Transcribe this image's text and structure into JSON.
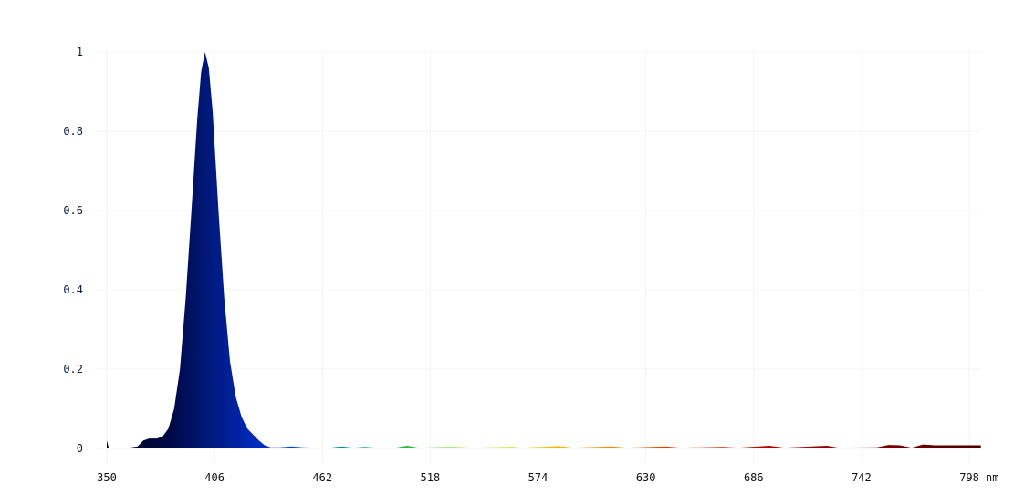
{
  "chart_data": {
    "type": "area",
    "title": "",
    "xlabel": "",
    "x_unit": "nm",
    "ylabel": "",
    "xlim": [
      350,
      804
    ],
    "ylim": [
      0,
      1
    ],
    "x_ticks": [
      350,
      406,
      462,
      518,
      574,
      630,
      686,
      742,
      798
    ],
    "y_ticks": [
      "0",
      "0.2",
      "0.4",
      "0.6",
      "0.8",
      "1"
    ],
    "grid": "faint vertical lines at x ticks",
    "fill": "colored by wavelength",
    "color_stops": [
      {
        "nm": 350,
        "color": "#00001a"
      },
      {
        "nm": 385,
        "color": "#000a4a"
      },
      {
        "nm": 405,
        "color": "#001a80"
      },
      {
        "nm": 440,
        "color": "#0033dd"
      },
      {
        "nm": 480,
        "color": "#009999"
      },
      {
        "nm": 510,
        "color": "#33bb33"
      },
      {
        "nm": 540,
        "color": "#aaee22"
      },
      {
        "nm": 580,
        "color": "#eebb00"
      },
      {
        "nm": 610,
        "color": "#ff8800"
      },
      {
        "nm": 645,
        "color": "#dd3300"
      },
      {
        "nm": 700,
        "color": "#aa0000"
      },
      {
        "nm": 804,
        "color": "#4a0000"
      }
    ],
    "points": [
      [
        350,
        0.02
      ],
      [
        351,
        0.002
      ],
      [
        360,
        0.001
      ],
      [
        366,
        0.005
      ],
      [
        369,
        0.02
      ],
      [
        372,
        0.025
      ],
      [
        376,
        0.025
      ],
      [
        379,
        0.03
      ],
      [
        382,
        0.05
      ],
      [
        385,
        0.1
      ],
      [
        388,
        0.2
      ],
      [
        391,
        0.38
      ],
      [
        394,
        0.6
      ],
      [
        397,
        0.83
      ],
      [
        399,
        0.95
      ],
      [
        401,
        1.0
      ],
      [
        403,
        0.96
      ],
      [
        405,
        0.85
      ],
      [
        408,
        0.6
      ],
      [
        411,
        0.38
      ],
      [
        414,
        0.22
      ],
      [
        417,
        0.13
      ],
      [
        420,
        0.08
      ],
      [
        423,
        0.05
      ],
      [
        426,
        0.035
      ],
      [
        429,
        0.02
      ],
      [
        432,
        0.008
      ],
      [
        435,
        0.003
      ],
      [
        440,
        0.003
      ],
      [
        446,
        0.005
      ],
      [
        452,
        0.003
      ],
      [
        458,
        0.002
      ],
      [
        466,
        0.002
      ],
      [
        472,
        0.005
      ],
      [
        478,
        0.002
      ],
      [
        484,
        0.004
      ],
      [
        490,
        0.002
      ],
      [
        500,
        0.002
      ],
      [
        506,
        0.007
      ],
      [
        512,
        0.002
      ],
      [
        530,
        0.004
      ],
      [
        540,
        0.002
      ],
      [
        560,
        0.004
      ],
      [
        566,
        0.002
      ],
      [
        585,
        0.006
      ],
      [
        592,
        0.002
      ],
      [
        612,
        0.005
      ],
      [
        620,
        0.002
      ],
      [
        640,
        0.005
      ],
      [
        648,
        0.002
      ],
      [
        670,
        0.004
      ],
      [
        678,
        0.002
      ],
      [
        694,
        0.007
      ],
      [
        702,
        0.002
      ],
      [
        724,
        0.007
      ],
      [
        730,
        0.002
      ],
      [
        750,
        0.003
      ],
      [
        756,
        0.009
      ],
      [
        762,
        0.008
      ],
      [
        768,
        0.002
      ],
      [
        774,
        0.01
      ],
      [
        780,
        0.008
      ],
      [
        804,
        0.008
      ]
    ]
  }
}
